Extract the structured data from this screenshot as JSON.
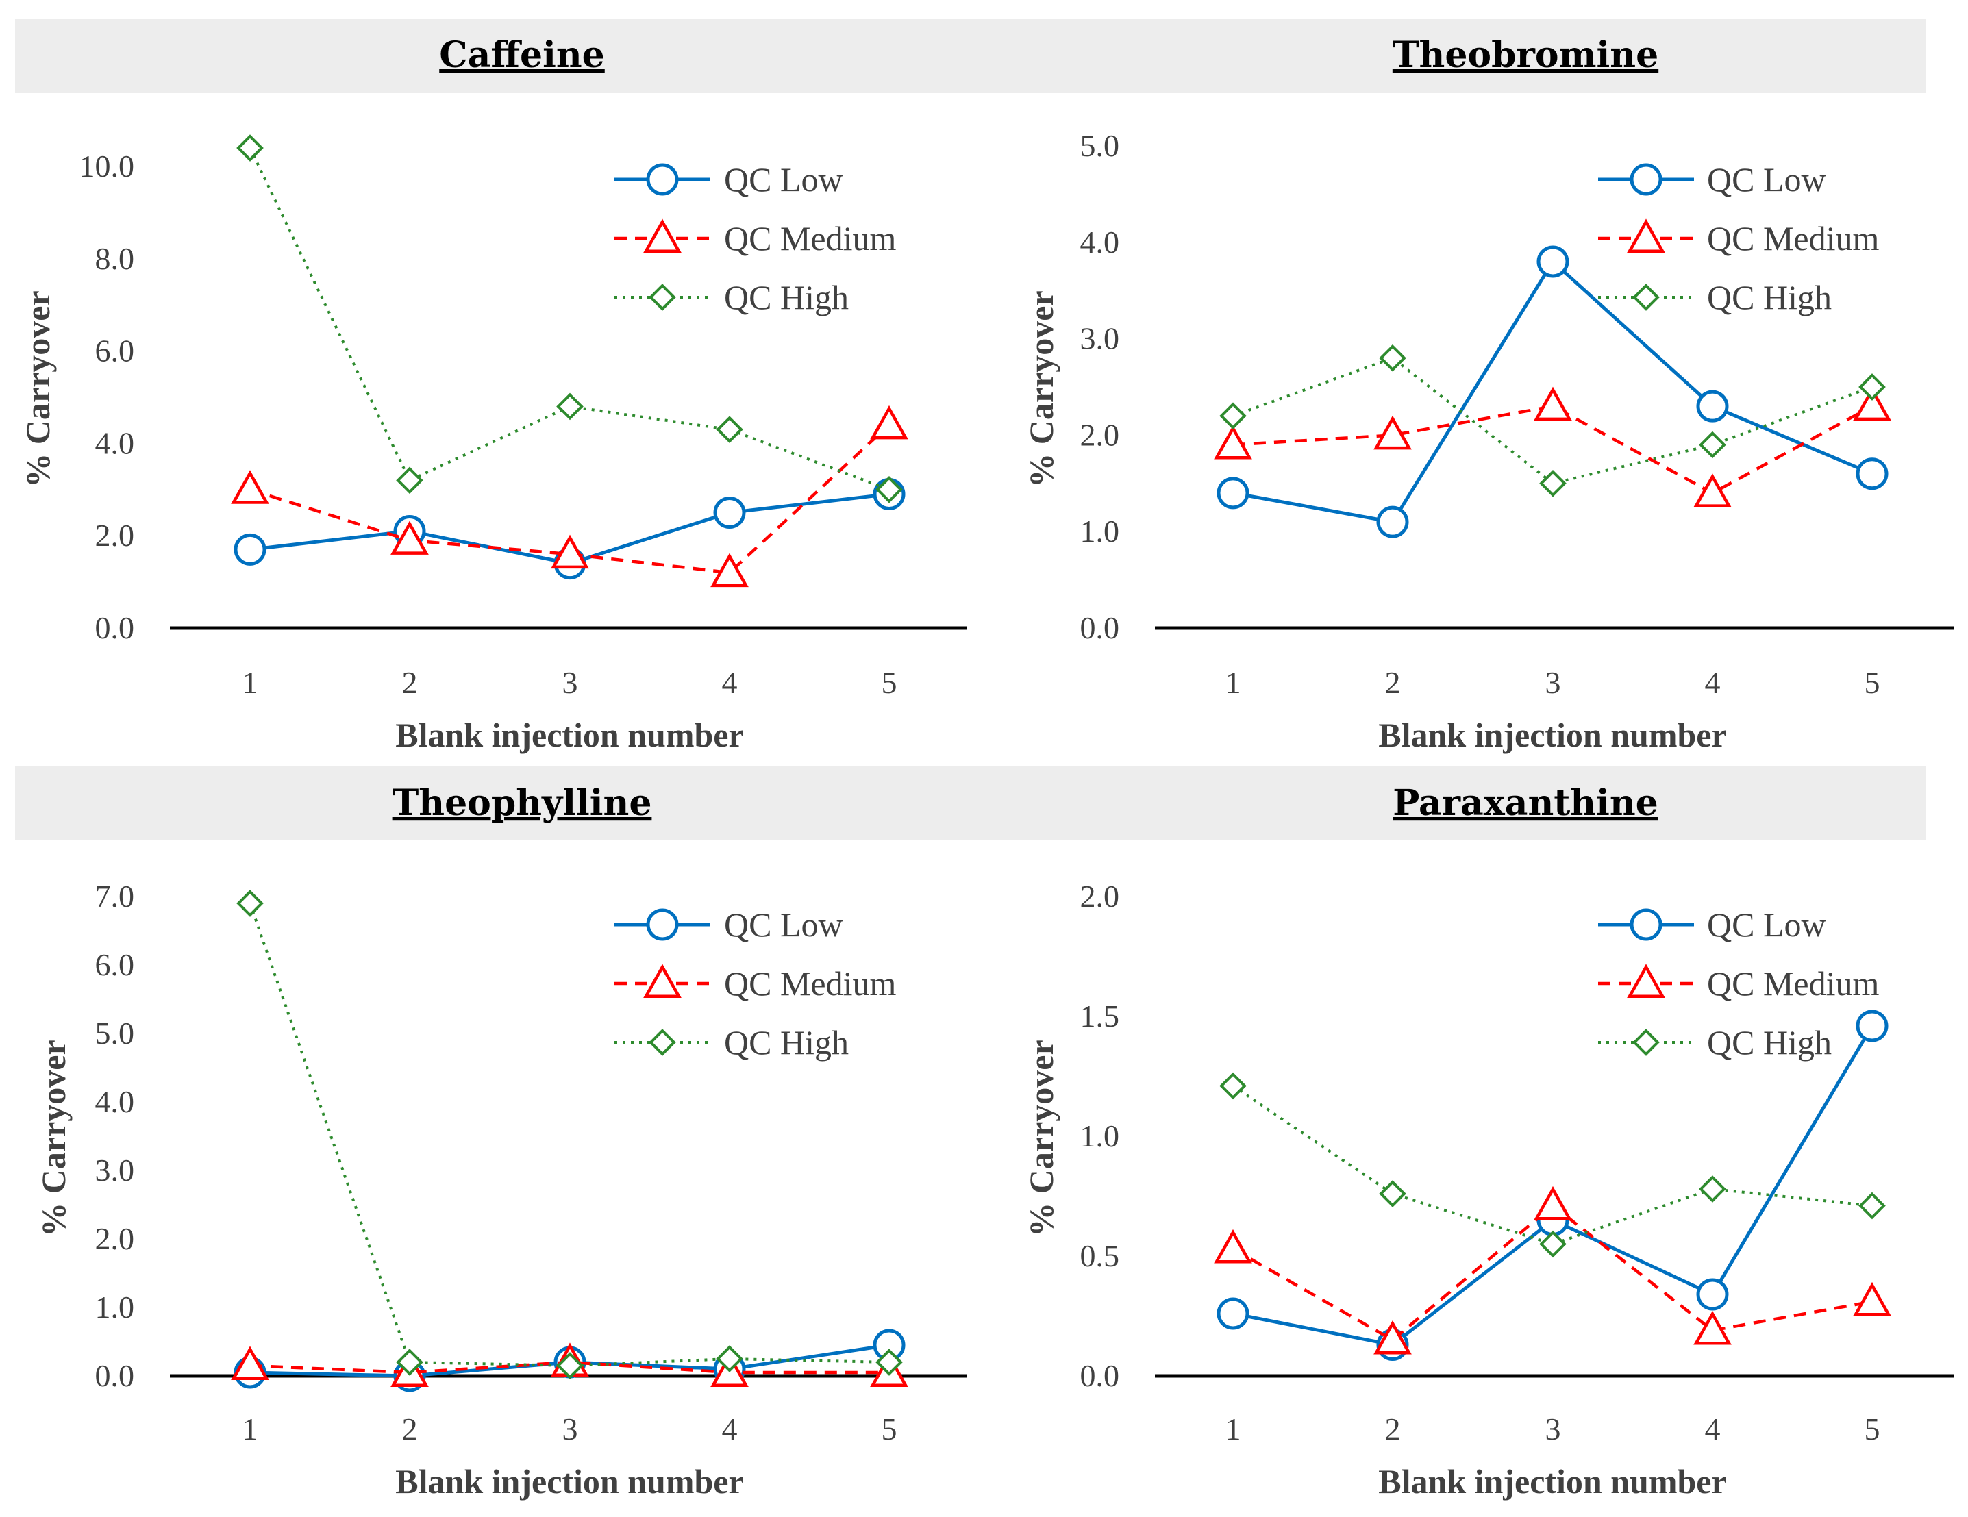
{
  "chart_data": [
    {
      "type": "line",
      "title": "Caffeine",
      "xlabel": "Blank injection number",
      "ylabel": "% Carryover",
      "categories": [
        "1",
        "2",
        "3",
        "4",
        "5"
      ],
      "ylim": [
        0,
        10
      ],
      "yticks": [
        "0.0",
        "2.0",
        "4.0",
        "6.0",
        "8.0",
        "10.0"
      ],
      "legend_position": "top-right",
      "series": [
        {
          "name": "QC Low",
          "values": [
            1.7,
            2.1,
            1.4,
            2.5,
            2.9
          ]
        },
        {
          "name": "QC Medium",
          "values": [
            3.0,
            1.9,
            1.6,
            1.2,
            4.4
          ]
        },
        {
          "name": "QC High",
          "values": [
            10.4,
            3.2,
            4.8,
            4.3,
            3.0
          ]
        }
      ]
    },
    {
      "type": "line",
      "title": "Theobromine",
      "xlabel": "Blank injection number",
      "ylabel": "% Carryover",
      "categories": [
        "1",
        "2",
        "3",
        "4",
        "5"
      ],
      "ylim": [
        0,
        5
      ],
      "yticks": [
        "0.0",
        "1.0",
        "2.0",
        "3.0",
        "4.0",
        "5.0"
      ],
      "legend_position": "top-right",
      "series": [
        {
          "name": "QC Low",
          "values": [
            1.4,
            1.1,
            3.8,
            2.3,
            1.6
          ]
        },
        {
          "name": "QC Medium",
          "values": [
            1.9,
            2.0,
            2.3,
            1.4,
            2.3
          ]
        },
        {
          "name": "QC High",
          "values": [
            2.2,
            2.8,
            1.5,
            1.9,
            2.5
          ]
        }
      ]
    },
    {
      "type": "line",
      "title": "Theophylline",
      "xlabel": "Blank injection number",
      "ylabel": "% Carryover",
      "categories": [
        "1",
        "2",
        "3",
        "4",
        "5"
      ],
      "ylim": [
        0,
        7
      ],
      "yticks": [
        "0.0",
        "1.0",
        "2.0",
        "3.0",
        "4.0",
        "5.0",
        "6.0",
        "7.0"
      ],
      "legend_position": "top-right",
      "series": [
        {
          "name": "QC Low",
          "values": [
            0.05,
            0.0,
            0.2,
            0.1,
            0.45
          ]
        },
        {
          "name": "QC Medium",
          "values": [
            0.15,
            0.05,
            0.2,
            0.05,
            0.05
          ]
        },
        {
          "name": "QC High",
          "values": [
            6.9,
            0.2,
            0.15,
            0.25,
            0.2
          ]
        }
      ]
    },
    {
      "type": "line",
      "title": "Paraxanthine",
      "xlabel": "Blank injection number",
      "ylabel": "% Carryover",
      "categories": [
        "1",
        "2",
        "3",
        "4",
        "5"
      ],
      "ylim": [
        0,
        2
      ],
      "yticks": [
        "0.0",
        "0.5",
        "1.0",
        "1.5",
        "2.0"
      ],
      "legend_position": "top-right",
      "series": [
        {
          "name": "QC Low",
          "values": [
            0.26,
            0.13,
            0.65,
            0.34,
            1.46
          ]
        },
        {
          "name": "QC Medium",
          "values": [
            0.53,
            0.15,
            0.71,
            0.19,
            0.31
          ]
        },
        {
          "name": "QC High",
          "values": [
            1.21,
            0.76,
            0.55,
            0.78,
            0.71
          ]
        }
      ]
    }
  ],
  "styles": {
    "series_colors": [
      "#0070C0",
      "#FF0000",
      "#2E8B2E"
    ],
    "axis_color": "#000000",
    "title_band_color": "#EDEDED"
  },
  "markers": {
    "QC Low": "circle-marker",
    "QC Medium": "triangle-marker",
    "QC High": "diamond-marker"
  }
}
